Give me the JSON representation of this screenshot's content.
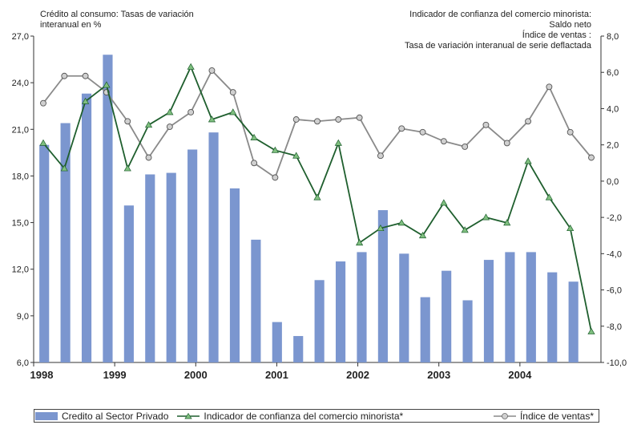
{
  "titles": {
    "left_line1": "Crédito al consumo: Tasas de variación",
    "left_line2": "interanual  en %",
    "right_line1": "Indicador de confianza del comercio minorista:",
    "right_line2": "Saldo neto",
    "right_line3": "Índice de ventas :",
    "right_line4": "Tasa de variación   interanual de serie deflactada"
  },
  "legend": {
    "bars": "Credito al Sector Privado",
    "line1": "Indicador de confianza del comercio minorista*",
    "line2": "Índice de ventas*"
  },
  "colors": {
    "bar": "#7b96cf",
    "line_confianza": "#1f5f2e",
    "marker_confianza": "#7fbf7f",
    "line_ventas": "#8a8a8a",
    "marker_ventas": "#d0d0d0"
  },
  "chart_data": {
    "type": "bar",
    "x_tick_labels": [
      "1998",
      "1999",
      "2000",
      "2001",
      "2002",
      "2003",
      "2004"
    ],
    "left_axis": {
      "ylim": [
        6.0,
        27.0
      ],
      "ticks": [
        "6,0",
        "9,0",
        "12,0",
        "15,0",
        "18,0",
        "21,0",
        "24,0",
        "27,0"
      ]
    },
    "right_axis": {
      "ylim": [
        -10.0,
        8.0
      ],
      "ticks": [
        "-10,0",
        "-8,0",
        "-6,0",
        "-4,0",
        "-2,0",
        "0,0",
        "2,0",
        "4,0",
        "6,0",
        "8,0"
      ]
    },
    "series": [
      {
        "name": "Credito al Sector Privado",
        "type": "bar",
        "axis": "left",
        "values": [
          20.0,
          21.4,
          23.3,
          25.8,
          16.1,
          18.1,
          18.2,
          19.7,
          20.8,
          17.2,
          13.9,
          8.6,
          7.7,
          11.3,
          12.5,
          13.1,
          15.8,
          13.0,
          10.2,
          11.9,
          10.0,
          12.6,
          13.1,
          13.1,
          11.8,
          11.2
        ]
      },
      {
        "name": "Indicador de confianza del comercio minorista*",
        "type": "line",
        "axis": "right",
        "values": [
          2.1,
          0.7,
          4.4,
          5.3,
          0.7,
          3.1,
          3.8,
          6.3,
          3.4,
          3.8,
          2.4,
          1.7,
          1.4,
          -0.9,
          2.1,
          -3.4,
          -2.6,
          -2.3,
          -3.0,
          -1.2,
          -2.7,
          -2.0,
          -2.3,
          1.1,
          -0.9,
          -2.6,
          -8.3
        ]
      },
      {
        "name": "Índice de ventas*",
        "type": "line",
        "axis": "right",
        "values": [
          4.3,
          5.8,
          5.8,
          4.9,
          3.3,
          1.3,
          3.0,
          3.8,
          6.1,
          4.9,
          1.0,
          0.2,
          3.4,
          3.3,
          3.4,
          3.5,
          1.4,
          2.9,
          2.7,
          2.2,
          1.9,
          3.1,
          2.1,
          3.3,
          5.2,
          2.7,
          1.3
        ]
      }
    ]
  }
}
